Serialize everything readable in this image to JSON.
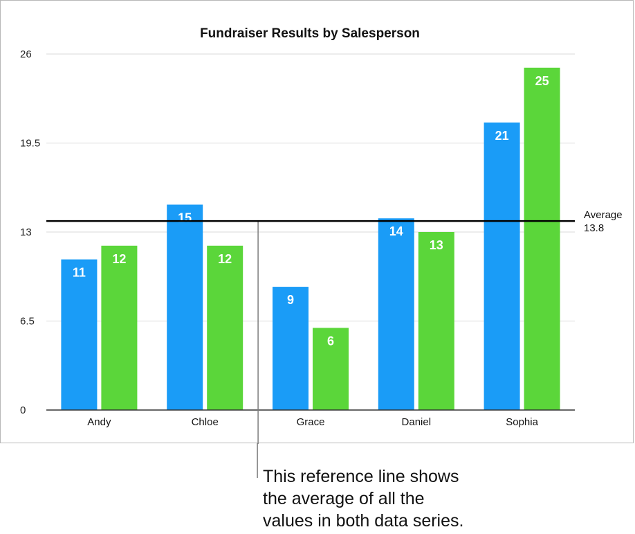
{
  "chart_data": {
    "type": "bar",
    "title": "Fundraiser Results by Salesperson",
    "categories": [
      "Andy",
      "Chloe",
      "Grace",
      "Daniel",
      "Sophia"
    ],
    "series": [
      {
        "values": [
          11,
          15,
          9,
          14,
          21
        ],
        "color": "#1a9cf7"
      },
      {
        "values": [
          12,
          12,
          6,
          13,
          25
        ],
        "color": "#5bd63a"
      }
    ],
    "ylim": [
      0,
      26
    ],
    "yticks": [
      "0",
      "6.5",
      "13",
      "19.5",
      "26"
    ],
    "grid": true,
    "reference_line": {
      "label": "Average",
      "value": 13.8,
      "value_label": "13.8",
      "color": "#000000"
    },
    "data_labels": true
  },
  "callout": {
    "lines": [
      "This reference line shows",
      "the average of all the",
      "values in both data series."
    ]
  }
}
